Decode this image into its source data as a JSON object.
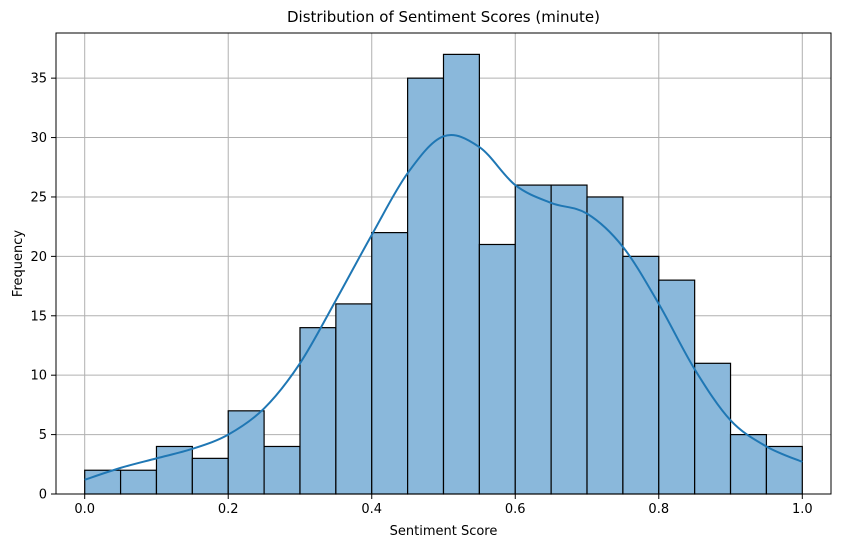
{
  "chart_data": {
    "type": "bar",
    "title": "Distribution of Sentiment Scores (minute)",
    "xlabel": "Sentiment Score",
    "ylabel": "Frequency",
    "xlim": [
      -0.04,
      1.04
    ],
    "ylim": [
      0,
      38.8
    ],
    "xticks": [
      0.0,
      0.2,
      0.4,
      0.6,
      0.8,
      1.0
    ],
    "xtick_labels": [
      "0.0",
      "0.2",
      "0.4",
      "0.6",
      "0.8",
      "1.0"
    ],
    "yticks": [
      0,
      5,
      10,
      15,
      20,
      25,
      30,
      35
    ],
    "ytick_labels": [
      "0",
      "5",
      "10",
      "15",
      "20",
      "25",
      "30",
      "35"
    ],
    "grid": true,
    "bin_edges": [
      0.0,
      0.05,
      0.1,
      0.15,
      0.2,
      0.25,
      0.3,
      0.35,
      0.4,
      0.45,
      0.5,
      0.55,
      0.6,
      0.65,
      0.7,
      0.75,
      0.8,
      0.85,
      0.9,
      0.95,
      1.0
    ],
    "values": [
      2,
      2,
      4,
      3,
      7,
      4,
      14,
      16,
      22,
      35,
      37,
      21,
      26,
      26,
      25,
      20,
      18,
      11,
      5,
      4
    ],
    "kde": {
      "x": [
        0.0,
        0.05,
        0.1,
        0.15,
        0.2,
        0.25,
        0.3,
        0.35,
        0.4,
        0.45,
        0.5,
        0.55,
        0.6,
        0.65,
        0.7,
        0.75,
        0.8,
        0.85,
        0.9,
        0.95,
        1.0
      ],
      "y": [
        1.2,
        2.2,
        3.0,
        3.8,
        5.0,
        7.2,
        11.0,
        16.3,
        21.8,
        27.0,
        30.1,
        29.2,
        26.0,
        24.5,
        23.6,
        20.8,
        16.0,
        10.5,
        6.2,
        4.0,
        2.7
      ]
    },
    "colors": {
      "bar_fill": "#8ab8db",
      "bar_edge": "#000000",
      "kde_line": "#1f77b4",
      "grid": "#b0b0b0"
    }
  }
}
